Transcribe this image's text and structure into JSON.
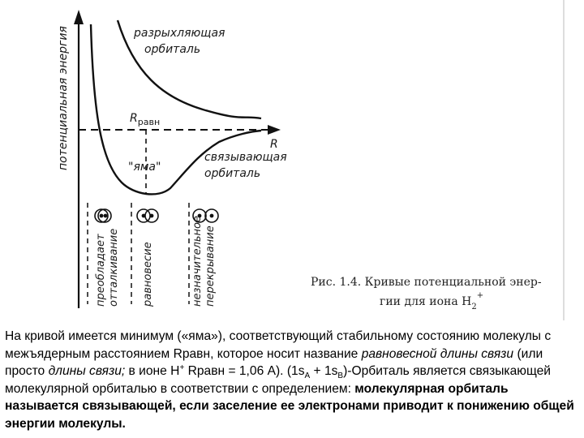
{
  "diagram": {
    "y_axis_label": "потенциальная энергия",
    "x_axis_label": "R",
    "antibonding_label_line1": "разрыхляющая",
    "antibonding_label_line2": "орбиталь",
    "bonding_label_line1": "связывающая",
    "bonding_label_line2": "орбиталь",
    "well_label": "\"яма\"",
    "r_eq_label_R": "R",
    "r_eq_label_sub": "равн",
    "region_repulsion_line1": "преобладает",
    "region_repulsion_line2": "отталкивание",
    "region_equilibrium": "равновесие",
    "region_overlap_line1": "незначительное",
    "region_overlap_line2": "перекрывание"
  },
  "caption": {
    "line1": "Рис. 1.4. Кривые потенциальной энер-",
    "line2": "гии для иона H",
    "ion_sub": "2",
    "ion_sup": "+"
  },
  "text": {
    "p1": "На кривой имеется минимум («яма»), соответствующий стабильному состоянию молекулы с межъядерным расстоянием Rравн, которое носит название ",
    "p1_italic": "равновесной длины связи",
    "p2": " (или просто ",
    "p2_italic": "длины связи;",
    "p3": " в ионе H",
    "p3_sup": "+",
    "p4": " Rравн = 1,06 A). (1s",
    "p4_sub": "A",
    "p5": " + 1s",
    "p5_sub": "B",
    "p6": ")-Орбиталь является связыкающей молекулярной орбиталью в соответствии с определением: ",
    "p6_bold": "молекулярная орбиталь называется связывающей, если заселение ее электронами приводит к понижению общей энергии молекулы."
  }
}
